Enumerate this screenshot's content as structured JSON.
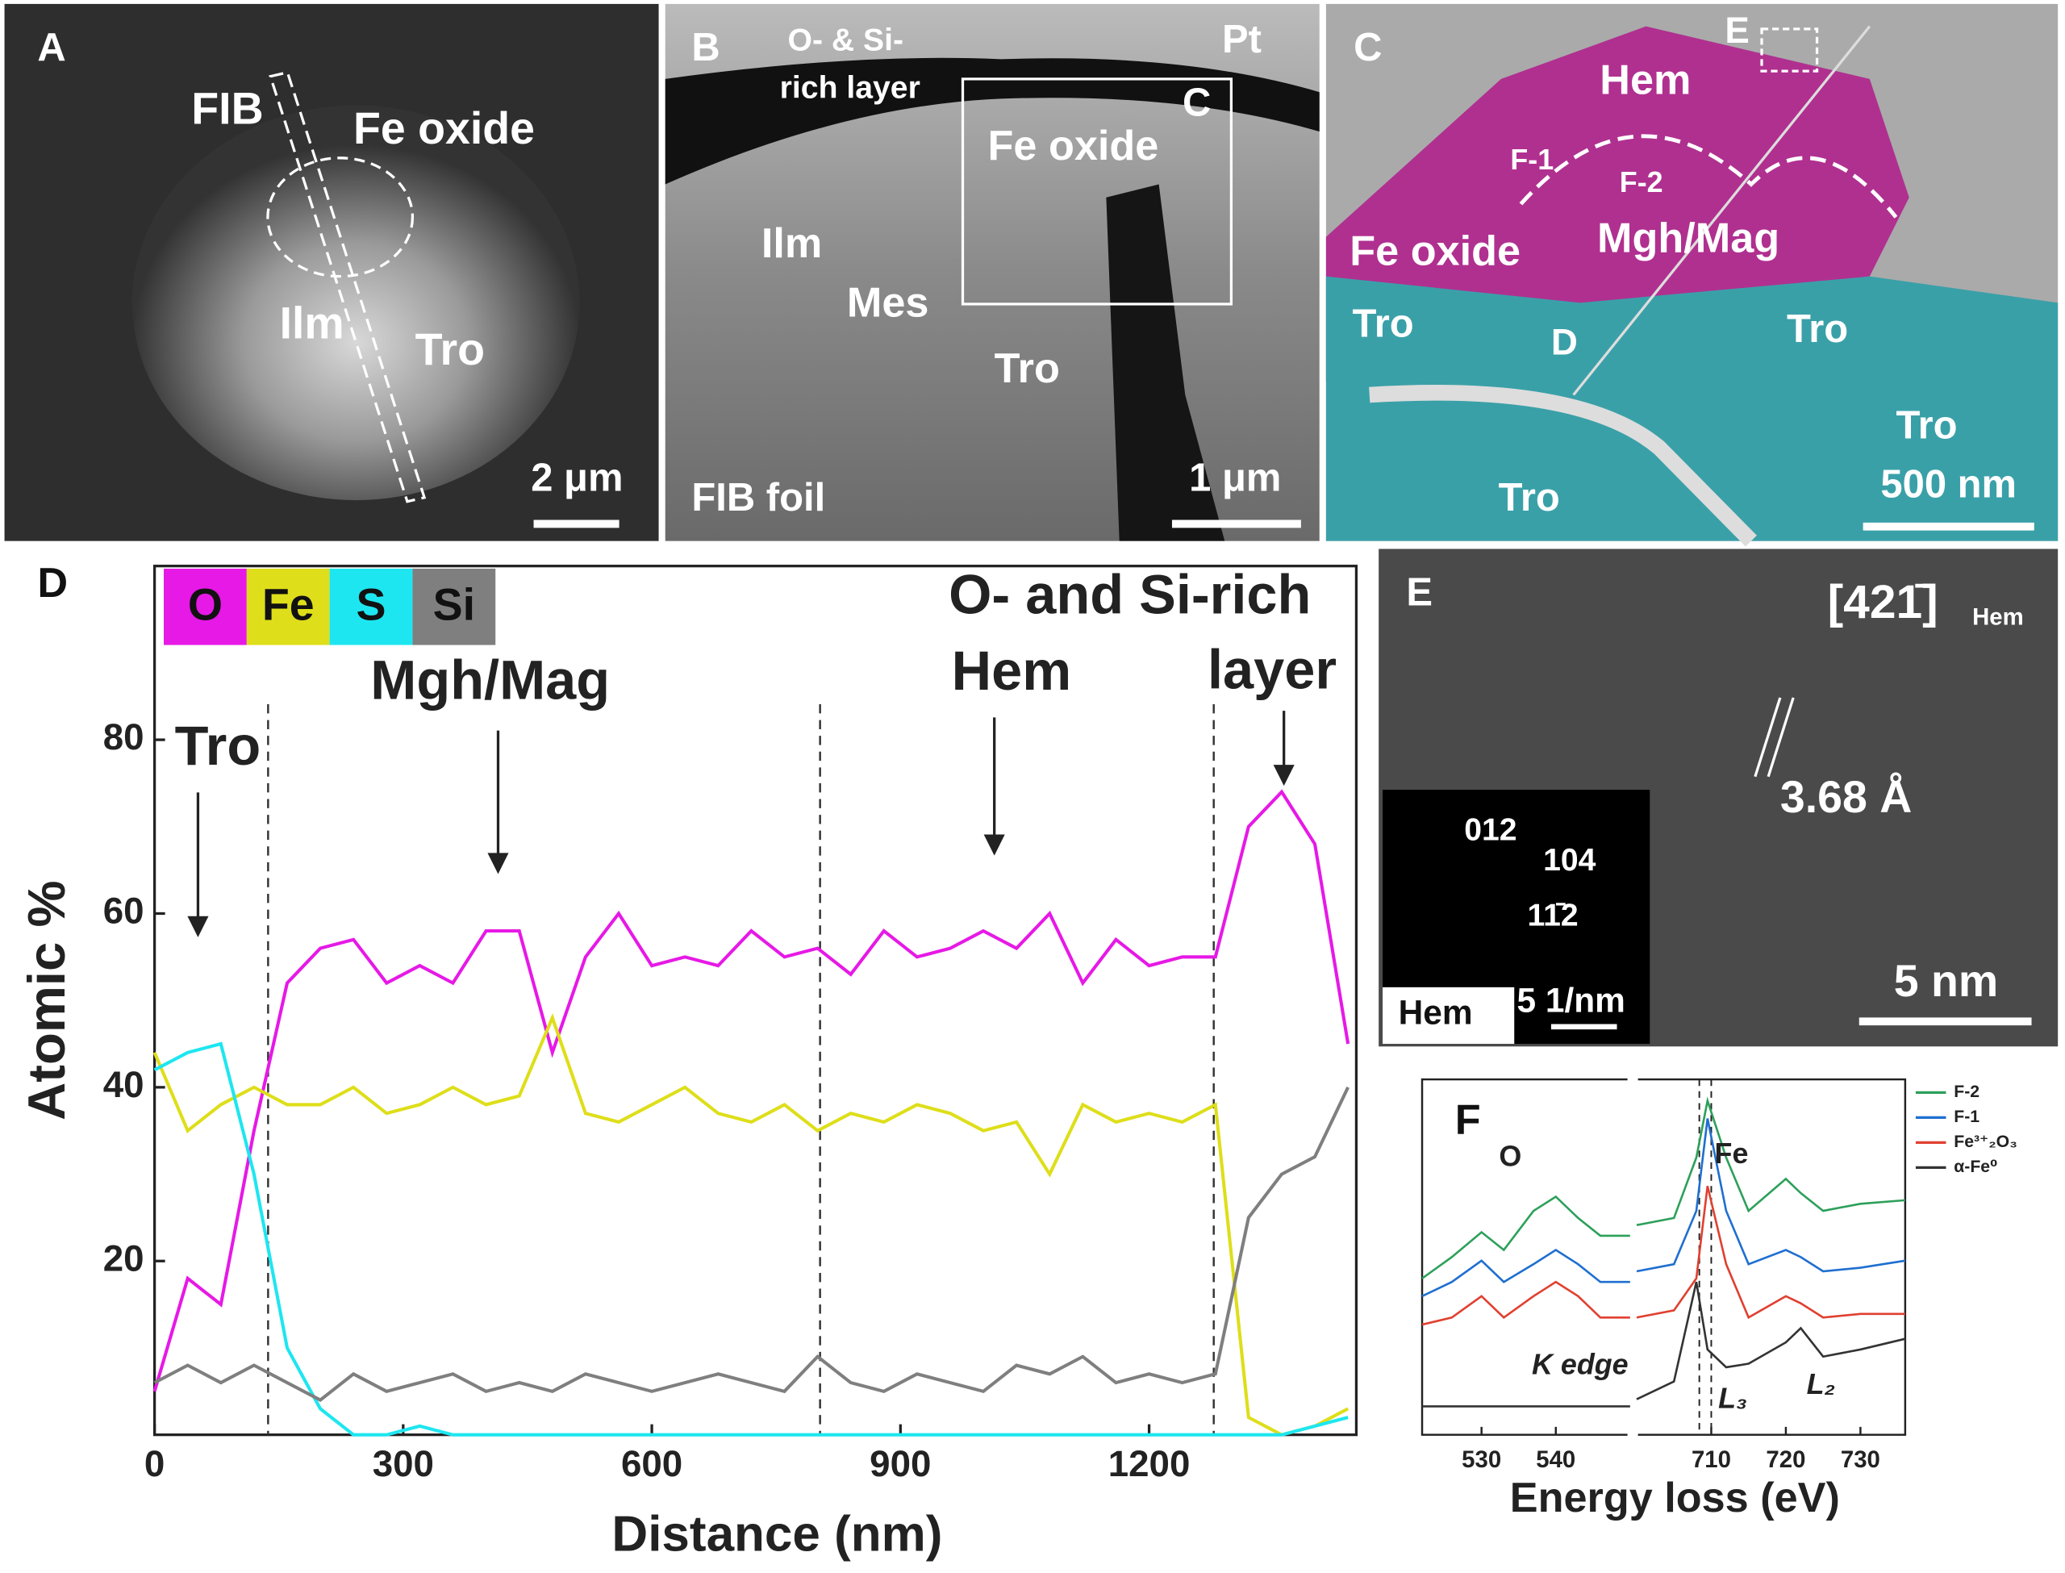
{
  "panels": {
    "A": {
      "letter": "A",
      "labels": [
        "FIB",
        "Fe oxide",
        "Ilm",
        "Tro"
      ],
      "scale_bar": "2 μm"
    },
    "B": {
      "letter": "B",
      "labels": [
        "O- & Si-",
        "rich layer",
        "Pt",
        "C",
        "Fe oxide",
        "Ilm",
        "Mes",
        "Tro",
        "FIB foil"
      ],
      "scale_bar": "1 μm"
    },
    "C": {
      "letter": "C",
      "labels": [
        "E",
        "Hem",
        "F-1",
        "F-2",
        "Mgh/Mag",
        "Fe oxide",
        "Tro",
        "D",
        "Tro",
        "Tro",
        "Tro"
      ],
      "scale_bar": "500 nm"
    },
    "E": {
      "letter": "E",
      "zone_axis": "[421̄]",
      "zone_axis_sub": "Hem",
      "spacing": "3.68 Å",
      "scale_bar": "5 nm",
      "inset": {
        "labels": [
          "012",
          "104",
          "11̄2"
        ],
        "phase": "Hem",
        "scale_bar": "5 1/nm"
      }
    }
  },
  "chart_data": [
    {
      "type": "line",
      "panel": "D",
      "x_label": "Distance (nm)",
      "y_label": "Atomic %",
      "xlim": [
        0,
        1450
      ],
      "ylim": [
        0,
        100
      ],
      "xticks": [
        0,
        300,
        600,
        900,
        1200
      ],
      "yticks": [
        20,
        40,
        60,
        80
      ],
      "boundaries": [
        137,
        803,
        1278
      ],
      "annotations": [
        "Tro",
        "Mgh/Mag",
        "Hem",
        "O- and Si-rich",
        "layer"
      ],
      "x": [
        0,
        40,
        80,
        120,
        160,
        200,
        240,
        280,
        320,
        360,
        400,
        440,
        480,
        520,
        560,
        600,
        640,
        680,
        720,
        760,
        800,
        840,
        880,
        920,
        960,
        1000,
        1040,
        1080,
        1120,
        1160,
        1200,
        1240,
        1280,
        1320,
        1360,
        1400,
        1440
      ],
      "series": [
        {
          "name": "O",
          "color": "#e619e6",
          "values": [
            5,
            18,
            15,
            35,
            52,
            56,
            57,
            52,
            54,
            52,
            58,
            58,
            44,
            55,
            60,
            54,
            55,
            54,
            58,
            55,
            56,
            53,
            58,
            55,
            56,
            58,
            56,
            60,
            52,
            57,
            54,
            55,
            55,
            70,
            74,
            68,
            45
          ]
        },
        {
          "name": "Fe",
          "color": "#dede1a",
          "values": [
            44,
            35,
            38,
            40,
            38,
            38,
            40,
            37,
            38,
            40,
            38,
            39,
            48,
            37,
            36,
            38,
            40,
            37,
            36,
            38,
            35,
            37,
            36,
            38,
            37,
            35,
            36,
            30,
            38,
            36,
            37,
            36,
            38,
            2,
            0,
            1,
            3
          ]
        },
        {
          "name": "S",
          "color": "#1ee6f0",
          "values": [
            42,
            44,
            45,
            30,
            10,
            3,
            0,
            0,
            1,
            0,
            0,
            0,
            0,
            0,
            0,
            0,
            0,
            0,
            0,
            0,
            0,
            0,
            0,
            0,
            0,
            0,
            0,
            0,
            0,
            0,
            0,
            0,
            0,
            0,
            0,
            1,
            2
          ]
        },
        {
          "name": "Si",
          "color": "#7f7f7f",
          "values": [
            6,
            8,
            6,
            8,
            6,
            4,
            7,
            5,
            6,
            7,
            5,
            6,
            5,
            7,
            6,
            5,
            6,
            7,
            6,
            5,
            9,
            6,
            5,
            7,
            6,
            5,
            8,
            7,
            9,
            6,
            7,
            6,
            7,
            25,
            30,
            32,
            40
          ]
        }
      ]
    },
    {
      "type": "spectrum",
      "panel": "F",
      "x_label": "Energy loss (eV)",
      "x_segments": [
        [
          522,
          550
        ],
        [
          700,
          736
        ]
      ],
      "ylim": [
        0,
        100
      ],
      "xticks": [
        530,
        540,
        710,
        720,
        730
      ],
      "reference_lines": [
        708.4,
        710
      ],
      "annotations": [
        "O",
        "Fe",
        "K edge",
        "L₃",
        "L₂"
      ],
      "x": [
        522,
        526,
        530,
        533,
        537,
        540,
        543,
        546,
        550,
        700,
        705,
        708,
        709.5,
        712,
        715,
        720,
        722,
        725,
        730,
        736
      ],
      "series": [
        {
          "name": "F-2",
          "color": "#2ca05a",
          "values": [
            44,
            50,
            57,
            52,
            63,
            67,
            61,
            56,
            56,
            59,
            61,
            78,
            94,
            78,
            63,
            72,
            68,
            63,
            65,
            66
          ]
        },
        {
          "name": "F-1",
          "color": "#1f6fd0",
          "values": [
            39,
            43,
            49,
            43,
            48,
            52,
            48,
            43,
            43,
            46,
            48,
            63,
            89,
            63,
            48,
            52,
            50,
            46,
            47,
            49
          ]
        },
        {
          "name": "Fe³⁺₂O₃",
          "color": "#e04030",
          "values": [
            31,
            33,
            39,
            33,
            39,
            43,
            39,
            33,
            33,
            33,
            35,
            44,
            70,
            48,
            33,
            39,
            37,
            33,
            34,
            34
          ]
        },
        {
          "name": "α-Fe⁰",
          "color": "#333333",
          "values": [
            8,
            8,
            8,
            8,
            8,
            8,
            8,
            8,
            8,
            10,
            15,
            43,
            24,
            19,
            20,
            26,
            30,
            22,
            24,
            27
          ]
        }
      ]
    }
  ]
}
